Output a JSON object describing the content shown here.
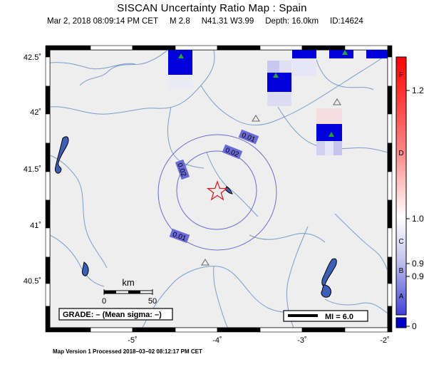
{
  "header": {
    "title": "SISCAN Uncertainty Ratio Map : Spain",
    "datetime": "Mar  2, 2018 08:09:14 PM CET",
    "magnitude": "M 2.8",
    "location": "N41.31 W3.99",
    "depth": "Depth: 16.0km",
    "event_id": "ID:14624"
  },
  "axes": {
    "lat_labels": [
      "42.5˚",
      "42˚",
      "41.5˚",
      "41˚",
      "40.5˚"
    ],
    "lon_labels": [
      "-5˚",
      "-4˚",
      "-3˚",
      "-2˚"
    ]
  },
  "contours": {
    "labels": [
      "0.01",
      "0.02",
      "0.02",
      "0.01"
    ]
  },
  "scale_bar": {
    "unit": "km",
    "ticks": [
      "0",
      "50"
    ]
  },
  "grade_box": "GRADE: – (Mean sigma: –)",
  "mi_legend": "MI = 6.0",
  "colorbar": {
    "letters": [
      "F",
      "D",
      "C",
      "B",
      "A"
    ],
    "values": [
      "1.2",
      "1.0",
      "0.9",
      "0.9",
      "0"
    ],
    "colors": {
      "top": "#ff0000",
      "mid": "#ffffff",
      "bottom": "#0000cc"
    }
  },
  "footer": "Map Version 1 Processed 2018–03–02 08:12:17 PM CET",
  "colors": {
    "land": "#eeeeee",
    "river": "#7b9ccc",
    "contour": "#6b6bd8",
    "cell_dark": "#0000dd",
    "epicenter": "#e02020",
    "station": "#22aa22"
  },
  "icons": [
    "epicenter-star-icon",
    "station-triangle-icon",
    "unused-station-triangle-icon"
  ]
}
